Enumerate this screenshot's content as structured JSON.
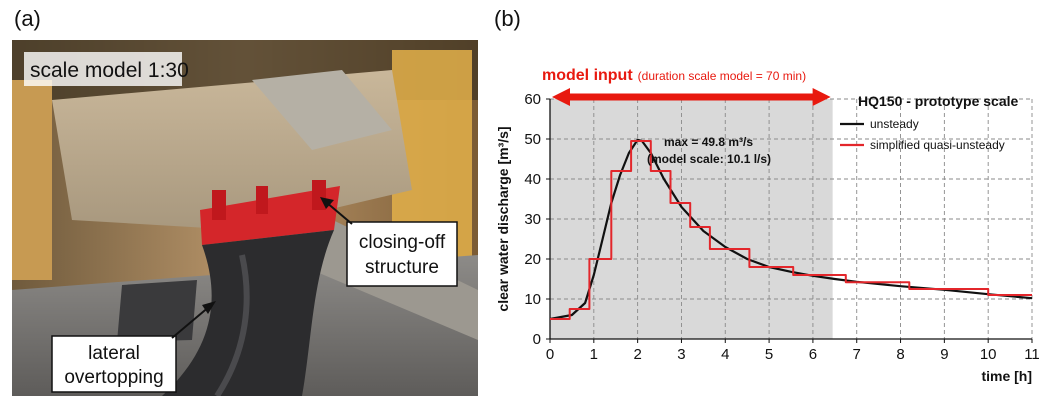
{
  "panel_a": {
    "label": "(a)",
    "photo_labels": {
      "scale": "scale model 1:30",
      "closing_off_line1": "closing-off",
      "closing_off_line2": "structure",
      "lateral_line1": "lateral",
      "lateral_line2": "overtopping"
    }
  },
  "panel_b": {
    "label": "(b)"
  },
  "chart_data": {
    "type": "line",
    "title": "HQ150 - prototype scale",
    "xlabel": "time [h]",
    "ylabel": "clear water discharge [m³/s]",
    "xlim": [
      0,
      11
    ],
    "ylim": [
      0,
      60
    ],
    "x_ticks": [
      0,
      1,
      2,
      3,
      4,
      5,
      6,
      7,
      8,
      9,
      10,
      11
    ],
    "y_ticks": [
      0,
      10,
      20,
      30,
      40,
      50,
      60
    ],
    "grid": true,
    "legend_position": "top-right",
    "shaded_region_x": [
      0,
      6.45
    ],
    "model_input": {
      "label": "model input",
      "note": "(duration scale model = 70 min)",
      "x_range": [
        0,
        6.45
      ]
    },
    "annotation": {
      "line1": "max = 49.8 m³/s",
      "line2": "(model scale:  10.1 l/s)"
    },
    "colors": {
      "unsteady": "#111111",
      "quasi": "#e3262b",
      "shade": "#d9d9d9",
      "arrow": "#e8190f"
    },
    "series": [
      {
        "name": "unsteady",
        "x": [
          0,
          0.5,
          0.8,
          1.0,
          1.2,
          1.4,
          1.6,
          1.8,
          2.0,
          2.1,
          2.3,
          2.6,
          3.0,
          3.5,
          4.0,
          4.5,
          5.0,
          5.5,
          6.0,
          6.5,
          7.0,
          8.0,
          9.0,
          10.0,
          11.0
        ],
        "y": [
          5,
          6,
          9,
          16,
          25,
          34,
          41,
          46.5,
          49.8,
          49.5,
          46.5,
          40,
          33,
          27,
          23,
          20,
          18,
          16.8,
          15.8,
          15,
          14.3,
          13.2,
          12.3,
          11.2,
          10.2
        ]
      },
      {
        "name": "simplified quasi-unsteady",
        "x": [
          0,
          0.45,
          0.45,
          0.9,
          0.9,
          1.4,
          1.4,
          1.85,
          1.85,
          2.3,
          2.3,
          2.75,
          2.75,
          3.2,
          3.2,
          3.65,
          3.65,
          4.55,
          4.55,
          5.55,
          5.55,
          6.75,
          6.75,
          8.2,
          8.2,
          10.0,
          10.0,
          11.0
        ],
        "y": [
          5,
          5,
          7.5,
          7.5,
          20,
          20,
          42,
          42,
          49.5,
          49.5,
          42,
          42,
          34,
          34,
          28,
          28,
          22.5,
          22.5,
          18,
          18,
          16,
          16,
          14.2,
          14.2,
          12.5,
          12.5,
          11,
          11
        ]
      }
    ]
  }
}
